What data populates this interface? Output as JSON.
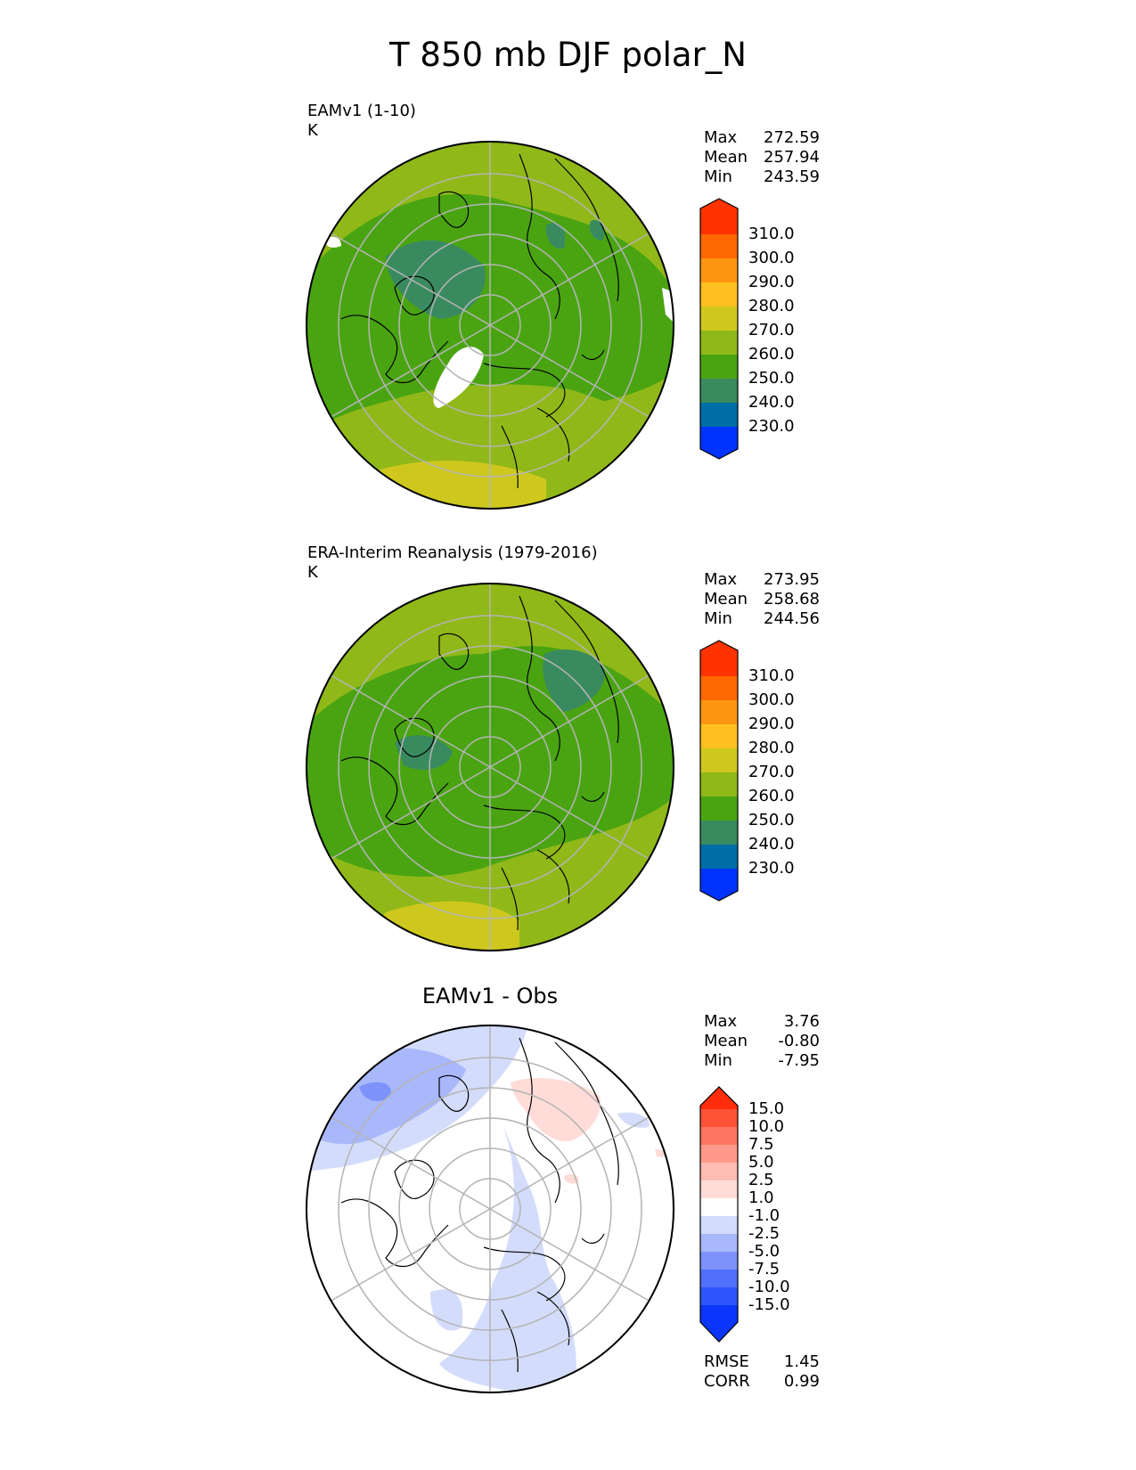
{
  "figure_title": "T 850 mb DJF polar_N",
  "panels": [
    {
      "label_line1": "EAMv1 (1-10)",
      "label_line2": "K",
      "stats": [
        {
          "k": "Max",
          "v": "272.59"
        },
        {
          "k": "Mean",
          "v": "257.94"
        },
        {
          "k": "Min",
          "v": "243.59"
        }
      ],
      "colorbar_ticks": [
        "310.0",
        "300.0",
        "290.0",
        "280.0",
        "270.0",
        "260.0",
        "250.0",
        "240.0",
        "230.0"
      ]
    },
    {
      "label_line1": "ERA-Interim Reanalysis (1979-2016)",
      "label_line2": "K",
      "stats": [
        {
          "k": "Max",
          "v": "273.95"
        },
        {
          "k": "Mean",
          "v": "258.68"
        },
        {
          "k": "Min",
          "v": "244.56"
        }
      ],
      "colorbar_ticks": [
        "310.0",
        "300.0",
        "290.0",
        "280.0",
        "270.0",
        "260.0",
        "250.0",
        "240.0",
        "230.0"
      ]
    },
    {
      "heading": "EAMv1 - Obs",
      "stats": [
        {
          "k": "Max",
          "v": "3.76"
        },
        {
          "k": "Mean",
          "v": "-0.80"
        },
        {
          "k": "Min",
          "v": "-7.95"
        }
      ],
      "colorbar_ticks": [
        "15.0",
        "10.0",
        "7.5",
        "5.0",
        "2.5",
        "1.0",
        "-1.0",
        "-2.5",
        "-5.0",
        "-7.5",
        "-10.0",
        "-15.0"
      ],
      "metrics": [
        {
          "k": "RMSE",
          "v": "1.45"
        },
        {
          "k": "CORR",
          "v": "0.99"
        }
      ]
    }
  ],
  "colors": {
    "abs_levels": [
      "#0033ff",
      "#006ea6",
      "#3a8a60",
      "#4aa412",
      "#90b818",
      "#cec81e",
      "#ffc020",
      "#ff9612",
      "#ff6800",
      "#ff3300"
    ],
    "diff_levels": [
      "#0b35fa",
      "#2d55fb",
      "#5070fb",
      "#7d93fb",
      "#a9b8fb",
      "#d3dcfb",
      "#ffffff",
      "#ffdcd8",
      "#ffbcb2",
      "#ff9a8a",
      "#ff7660",
      "#ff5236",
      "#ff2d0c"
    ]
  },
  "chart_data": [
    {
      "type": "heatmap",
      "title": "EAMv1 (1-10)",
      "units": "K",
      "projection": "polar stereographic, north pole",
      "levels": [
        230,
        240,
        250,
        260,
        270,
        280,
        290,
        300,
        310
      ],
      "stats": {
        "max": 272.59,
        "mean": 257.94,
        "min": 243.59
      }
    },
    {
      "type": "heatmap",
      "title": "ERA-Interim Reanalysis (1979-2016)",
      "units": "K",
      "projection": "polar stereographic, north pole",
      "levels": [
        230,
        240,
        250,
        260,
        270,
        280,
        290,
        300,
        310
      ],
      "stats": {
        "max": 273.95,
        "mean": 258.68,
        "min": 244.56
      }
    },
    {
      "type": "heatmap",
      "title": "EAMv1 - Obs",
      "projection": "polar stereographic, north pole",
      "levels": [
        -15,
        -10,
        -7.5,
        -5,
        -2.5,
        -1,
        1,
        2.5,
        5,
        7.5,
        10,
        15
      ],
      "stats": {
        "max": 3.76,
        "mean": -0.8,
        "min": -7.95,
        "rmse": 1.45,
        "corr": 0.99
      }
    }
  ]
}
